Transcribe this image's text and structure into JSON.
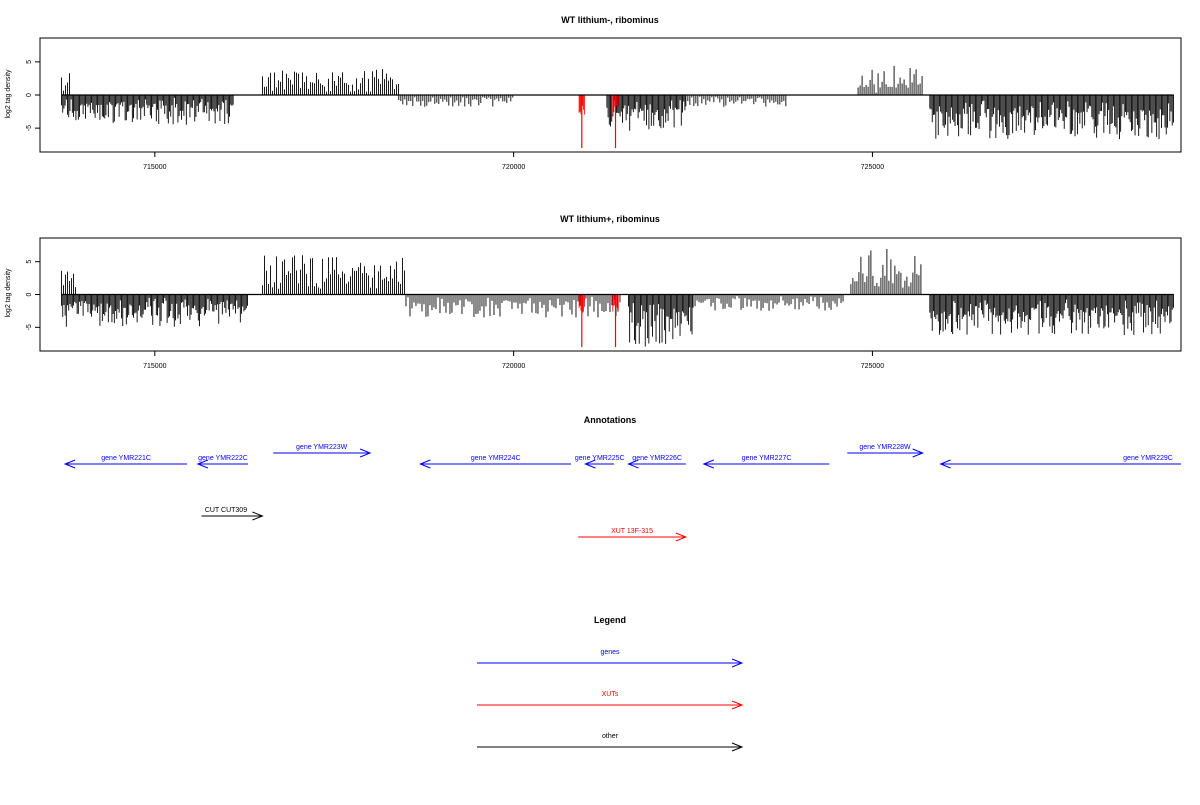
{
  "chart_data": [
    {
      "type": "bar",
      "title": "WT lithium-, ribominus",
      "xlabel": "",
      "ylabel": "log2 tag density",
      "xlim": [
        713400,
        729300
      ],
      "ylim": [
        -8,
        8
      ],
      "xticks": [
        715000,
        720000,
        725000
      ],
      "xtick_labels": [
        "715000",
        "720000",
        "725000"
      ],
      "yticks": [
        -5,
        0,
        5
      ],
      "ytick_labels": [
        "-5",
        "0",
        "5"
      ],
      "grid": false,
      "series": [
        {
          "color": "#000000",
          "regions": [
            {
              "x": [
                713700,
                713820
              ],
              "y": [
                0.5,
                3.8
              ],
              "strand": "plus"
            },
            {
              "x": [
                713700,
                716100
              ],
              "y": [
                -1.2,
                -4.5
              ],
              "strand": "minus"
            },
            {
              "x": [
                716500,
                718400
              ],
              "y": [
                0.8,
                4.0
              ],
              "strand": "plus"
            },
            {
              "x": [
                718400,
                720000
              ],
              "y": [
                -0.6,
                -1.8
              ],
              "strand": "minus"
            },
            {
              "x": [
                721300,
                722400
              ],
              "y": [
                -1.5,
                -5.6
              ],
              "strand": "minus"
            },
            {
              "x": [
                722400,
                723800
              ],
              "y": [
                -0.5,
                -1.8
              ],
              "strand": "minus"
            },
            {
              "x": [
                724800,
                725700
              ],
              "y": [
                0.8,
                4.5
              ],
              "strand": "plus"
            },
            {
              "x": [
                725800,
                729200
              ],
              "y": [
                -2.0,
                -6.8
              ],
              "strand": "minus"
            }
          ]
        },
        {
          "color": "#ff0000",
          "marks": [
            {
              "x": 720950,
              "y": -8.0
            },
            {
              "x": 721420,
              "y": -8.0
            }
          ]
        }
      ]
    },
    {
      "type": "bar",
      "title": "WT lithium+, ribominus",
      "xlabel": "",
      "ylabel": "log2 tag density",
      "xlim": [
        713400,
        729300
      ],
      "ylim": [
        -8,
        8
      ],
      "xticks": [
        715000,
        720000,
        725000
      ],
      "xtick_labels": [
        "715000",
        "720000",
        "725000"
      ],
      "yticks": [
        -5,
        0,
        5
      ],
      "ytick_labels": [
        "-5",
        "0",
        "5"
      ],
      "grid": false,
      "series": [
        {
          "color": "#000000",
          "regions": [
            {
              "x": [
                713700,
                713900
              ],
              "y": [
                1.0,
                4.0
              ],
              "strand": "plus"
            },
            {
              "x": [
                713700,
                716300
              ],
              "y": [
                -1.2,
                -5.0
              ],
              "strand": "minus"
            },
            {
              "x": [
                716500,
                718500
              ],
              "y": [
                1.5,
                6.0
              ],
              "strand": "plus"
            },
            {
              "x": [
                718500,
                721500
              ],
              "y": [
                -0.8,
                -3.5
              ],
              "strand": "minus"
            },
            {
              "x": [
                721600,
                722500
              ],
              "y": [
                -2.5,
                -8.0
              ],
              "strand": "minus"
            },
            {
              "x": [
                722500,
                724600
              ],
              "y": [
                -0.5,
                -2.5
              ],
              "strand": "minus"
            },
            {
              "x": [
                724700,
                725700
              ],
              "y": [
                1.2,
                7.0
              ],
              "strand": "plus"
            },
            {
              "x": [
                725800,
                729200
              ],
              "y": [
                -2.0,
                -6.2
              ],
              "strand": "minus"
            }
          ]
        },
        {
          "color": "#ff0000",
          "marks": [
            {
              "x": 720950,
              "y": -8.0
            },
            {
              "x": 721420,
              "y": -8.0
            }
          ]
        }
      ]
    }
  ],
  "annotations": {
    "title": "Annotations",
    "features": [
      {
        "label": "gene YMR221C",
        "start": 713750,
        "end": 715450,
        "strand": "minus",
        "type": "gene",
        "color": "#0000ff"
      },
      {
        "label": "gene YMR222C",
        "start": 715600,
        "end": 716300,
        "strand": "minus",
        "type": "gene",
        "color": "#0000ff"
      },
      {
        "label": "gene YMR223W",
        "start": 716650,
        "end": 718000,
        "strand": "plus",
        "type": "gene",
        "color": "#0000ff"
      },
      {
        "label": "gene YMR224C",
        "start": 718700,
        "end": 720800,
        "strand": "minus",
        "type": "gene",
        "color": "#0000ff"
      },
      {
        "label": "gene YMR225C",
        "start": 721000,
        "end": 721400,
        "strand": "minus",
        "type": "gene",
        "color": "#0000ff"
      },
      {
        "label": "gene YMR226C",
        "start": 721600,
        "end": 722400,
        "strand": "minus",
        "type": "gene",
        "color": "#0000ff"
      },
      {
        "label": "gene YMR227C",
        "start": 722650,
        "end": 724400,
        "strand": "minus",
        "type": "gene",
        "color": "#0000ff"
      },
      {
        "label": "gene YMR228W",
        "start": 724650,
        "end": 725700,
        "strand": "plus",
        "type": "gene",
        "color": "#0000ff"
      },
      {
        "label": "gene YMR229C",
        "start": 725950,
        "end": 729300,
        "strand": "minus",
        "type": "gene",
        "color": "#0000ff"
      },
      {
        "label": "CUT CUT309",
        "start": 715650,
        "end": 716500,
        "strand": "plus",
        "type": "other",
        "color": "#000000"
      },
      {
        "label": "XUT 13F-315",
        "start": 720900,
        "end": 722400,
        "strand": "plus",
        "type": "XUT",
        "color": "#ff0000"
      }
    ]
  },
  "legend": {
    "title": "Legend",
    "entries": [
      {
        "label": "genes",
        "color": "#0000ff"
      },
      {
        "label": "XUTs",
        "color": "#ff0000"
      },
      {
        "label": "other",
        "color": "#000000"
      }
    ]
  }
}
